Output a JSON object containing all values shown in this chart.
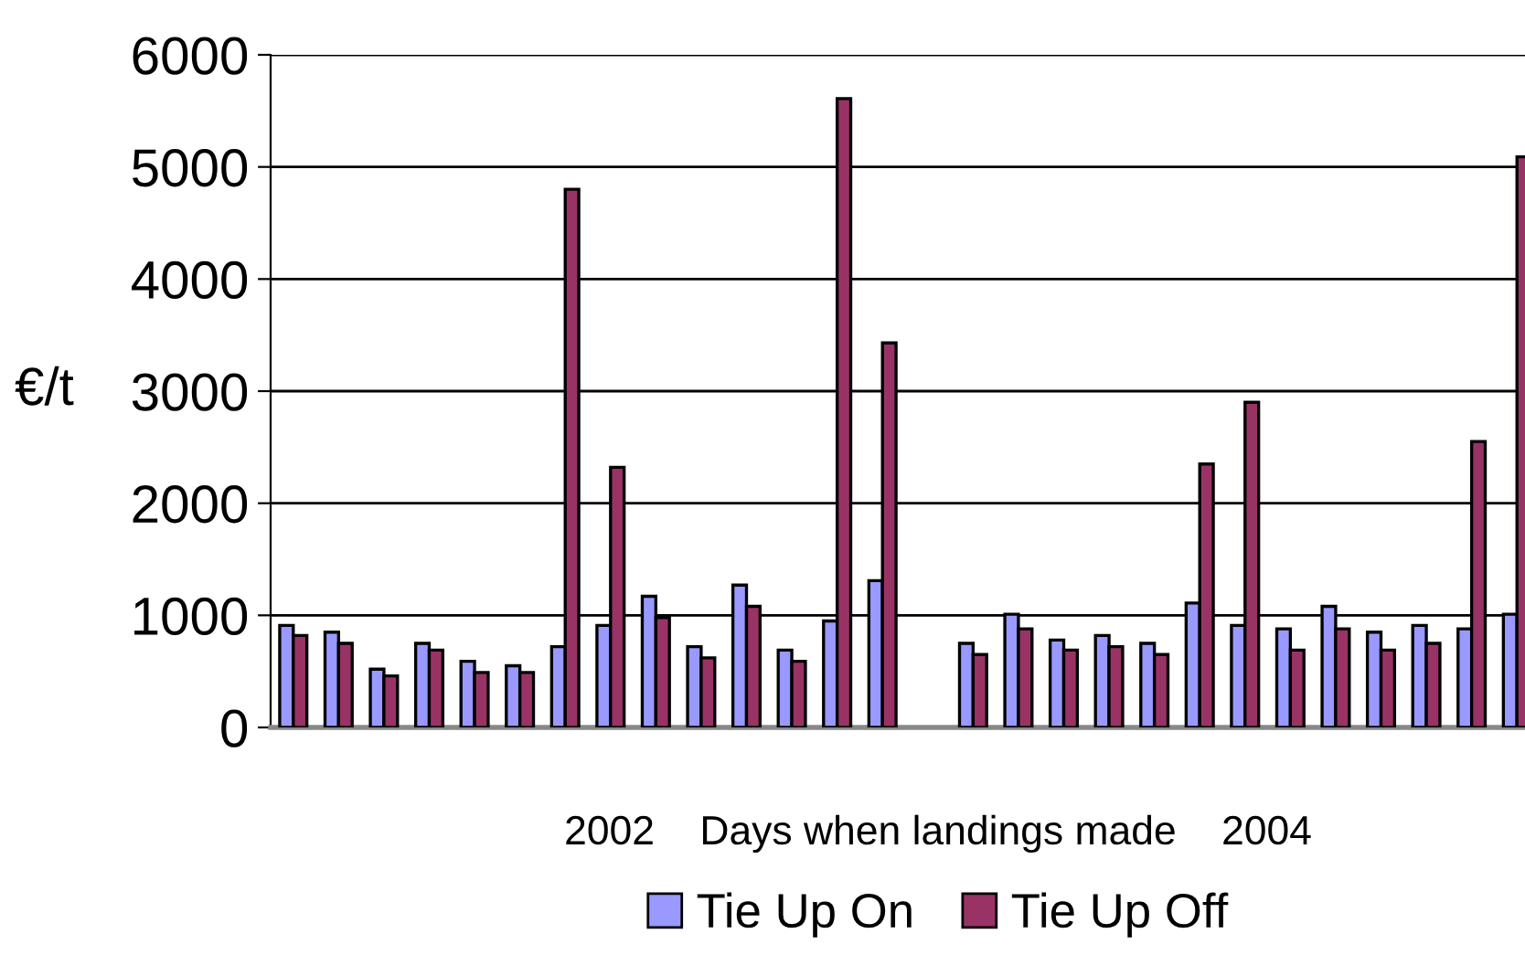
{
  "chart_data": {
    "type": "bar",
    "xlabel": "2002    Days when landings made    2004",
    "ylabel": "€/t",
    "categories": [
      null,
      null,
      null,
      null,
      null,
      null,
      null,
      null,
      null,
      null,
      null,
      null,
      null,
      null,
      null,
      null,
      null,
      null,
      null,
      null,
      null,
      null,
      null,
      null,
      null,
      null,
      null,
      null
    ],
    "series": [
      {
        "name": "Tie Up On",
        "color": "#9999ff",
        "values": [
          910,
          850,
          520,
          750,
          590,
          550,
          720,
          910,
          1170,
          720,
          1270,
          690,
          950,
          1310,
          null,
          750,
          1010,
          780,
          820,
          750,
          1110,
          910,
          880,
          1080,
          850,
          910,
          880,
          1010
        ]
      },
      {
        "name": "Tie Up Off",
        "color": "#993366",
        "values": [
          820,
          750,
          460,
          690,
          490,
          490,
          4800,
          2320,
          980,
          620,
          1080,
          590,
          5610,
          3430,
          null,
          650,
          880,
          690,
          720,
          650,
          2350,
          2900,
          690,
          880,
          690,
          750,
          2550,
          5090
        ]
      }
    ],
    "ylim": [
      0,
      6000
    ],
    "yticks": [
      0,
      1000,
      2000,
      3000,
      4000,
      5000,
      6000
    ],
    "grid": "y",
    "legend": "bottom"
  }
}
